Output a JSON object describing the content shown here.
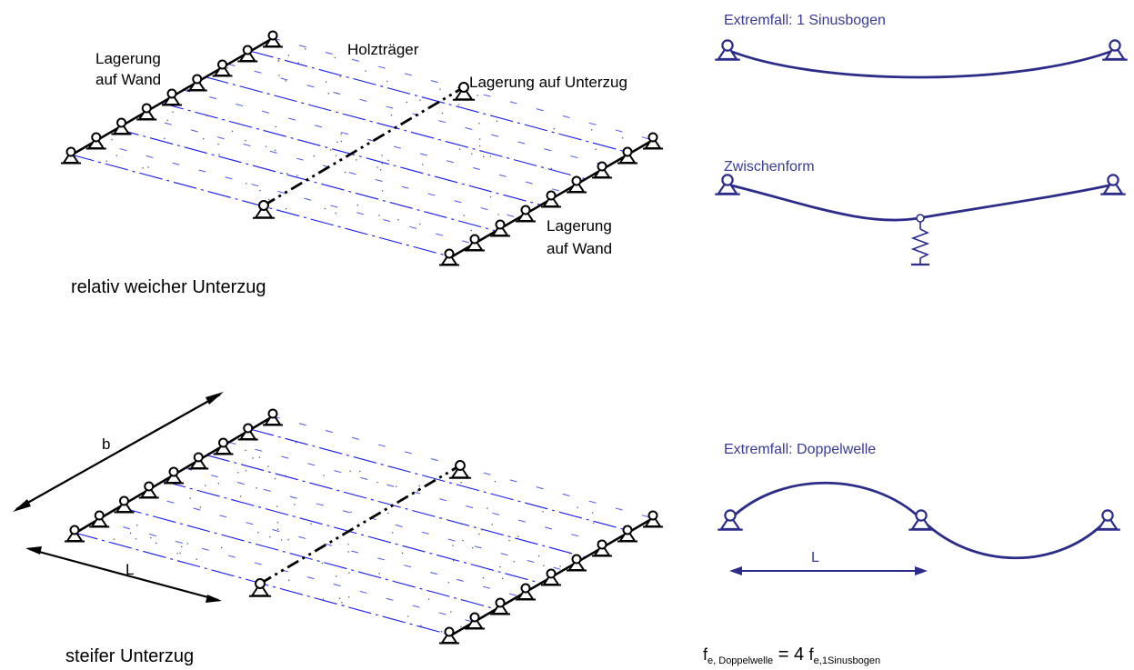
{
  "diagram": {
    "top_left": {
      "label_wall_left": [
        "Lagerung",
        "auf Wand"
      ],
      "label_beam": "Holzträger",
      "label_girder_support": "Lagerung auf Unterzug",
      "label_wall_right": [
        "Lagerung",
        "auf Wand"
      ],
      "caption": "relativ weicher Unterzug"
    },
    "bottom_left": {
      "dim_b": "b",
      "dim_L": "L",
      "caption": "steifer Unterzug"
    },
    "right": {
      "case1_title": "Extremfall: 1 Sinusbogen",
      "case2_title": "Zwischenform",
      "case3_title": "Extremfall: Doppelwelle",
      "dim_L": "L",
      "formula": {
        "lhs_base": "f",
        "lhs_sub": "e, Doppelwelle",
        "eq": " = 4 ",
        "rhs_base": "f",
        "rhs_sub": "e,1Sinusbogen"
      }
    }
  }
}
